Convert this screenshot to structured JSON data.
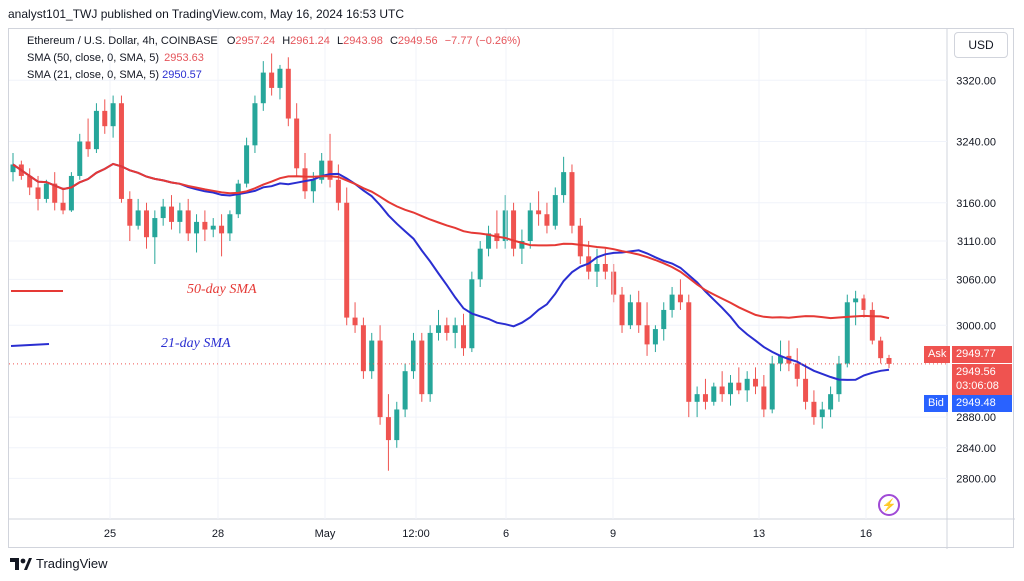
{
  "header": {
    "publisher": "analyst101_TWJ published on TradingView.com, May 16, 2024 16:53 UTC"
  },
  "legend": {
    "symbol": "Ethereum / U.S. Dollar, 4h, COINBASE",
    "o_label": "O",
    "o": "2957.24",
    "h_label": "H",
    "h": "2961.24",
    "l_label": "L",
    "l": "2943.98",
    "c_label": "C",
    "c": "2949.56",
    "change": "−7.77 (−0.26%)",
    "sma50_label": "SMA (50, close, 0, SMA, 5)",
    "sma50_value": "2953.63",
    "sma21_label": "SMA (21, close, 0, SMA, 5)",
    "sma21_value": "2950.57"
  },
  "currency_button": "USD",
  "annotations": {
    "sma50": "50-day SMA",
    "sma21": "21-day SMA"
  },
  "price_labels": {
    "ask_label": "Ask",
    "ask": "2949.77",
    "last": "2949.56",
    "countdown": "03:06:08",
    "bid_label": "Bid",
    "bid": "2949.48"
  },
  "footer": {
    "brand": "TradingView"
  },
  "colors": {
    "up": "#26a69a",
    "down": "#ef5350",
    "sma50": "#e53935",
    "sma21": "#2a2ed1",
    "grid": "#f0f3fa"
  },
  "chart_data": {
    "type": "candlestick",
    "y_axis": {
      "min": 2760,
      "max": 3400,
      "ticks": [
        2800,
        2840,
        2880,
        3000,
        3060,
        3110,
        3160,
        3240,
        3320
      ]
    },
    "x_labels": [
      "25",
      "28",
      "May",
      "12:00",
      "6",
      "9",
      "13",
      "16"
    ],
    "ohlc": [
      [
        3200,
        3225,
        3188,
        3210
      ],
      [
        3210,
        3215,
        3190,
        3195
      ],
      [
        3195,
        3205,
        3170,
        3180
      ],
      [
        3180,
        3195,
        3150,
        3165
      ],
      [
        3165,
        3190,
        3160,
        3185
      ],
      [
        3185,
        3200,
        3150,
        3160
      ],
      [
        3160,
        3180,
        3145,
        3150
      ],
      [
        3150,
        3200,
        3148,
        3195
      ],
      [
        3195,
        3250,
        3190,
        3240
      ],
      [
        3240,
        3270,
        3220,
        3230
      ],
      [
        3230,
        3290,
        3225,
        3280
      ],
      [
        3280,
        3295,
        3250,
        3260
      ],
      [
        3260,
        3300,
        3245,
        3290
      ],
      [
        3290,
        3300,
        3160,
        3165
      ],
      [
        3165,
        3175,
        3110,
        3130
      ],
      [
        3130,
        3165,
        3125,
        3150
      ],
      [
        3150,
        3160,
        3100,
        3115
      ],
      [
        3115,
        3150,
        3080,
        3140
      ],
      [
        3140,
        3165,
        3130,
        3155
      ],
      [
        3155,
        3170,
        3125,
        3135
      ],
      [
        3135,
        3160,
        3120,
        3150
      ],
      [
        3150,
        3165,
        3110,
        3120
      ],
      [
        3120,
        3145,
        3095,
        3135
      ],
      [
        3135,
        3150,
        3110,
        3125
      ],
      [
        3125,
        3140,
        3115,
        3130
      ],
      [
        3130,
        3145,
        3090,
        3120
      ],
      [
        3120,
        3150,
        3110,
        3145
      ],
      [
        3145,
        3190,
        3140,
        3185
      ],
      [
        3185,
        3245,
        3180,
        3235
      ],
      [
        3235,
        3300,
        3225,
        3290
      ],
      [
        3290,
        3345,
        3280,
        3330
      ],
      [
        3330,
        3355,
        3300,
        3310
      ],
      [
        3310,
        3340,
        3295,
        3335
      ],
      [
        3335,
        3350,
        3260,
        3270
      ],
      [
        3270,
        3290,
        3195,
        3205
      ],
      [
        3205,
        3225,
        3165,
        3175
      ],
      [
        3175,
        3200,
        3160,
        3190
      ],
      [
        3190,
        3225,
        3185,
        3215
      ],
      [
        3215,
        3250,
        3180,
        3190
      ],
      [
        3190,
        3210,
        3150,
        3160
      ],
      [
        3160,
        3180,
        3000,
        3010
      ],
      [
        3010,
        3030,
        2990,
        3000
      ],
      [
        3000,
        3010,
        2930,
        2940
      ],
      [
        2940,
        2990,
        2930,
        2980
      ],
      [
        2980,
        3000,
        2870,
        2880
      ],
      [
        2880,
        2910,
        2810,
        2850
      ],
      [
        2850,
        2900,
        2840,
        2890
      ],
      [
        2890,
        2950,
        2880,
        2940
      ],
      [
        2940,
        2990,
        2930,
        2980
      ],
      [
        2980,
        2990,
        2900,
        2910
      ],
      [
        2910,
        3000,
        2900,
        2990
      ],
      [
        2990,
        3020,
        2980,
        3000
      ],
      [
        3000,
        3010,
        2980,
        2990
      ],
      [
        2990,
        3010,
        2970,
        3000
      ],
      [
        3000,
        3015,
        2960,
        2970
      ],
      [
        2970,
        3070,
        2965,
        3060
      ],
      [
        3060,
        3110,
        3050,
        3100
      ],
      [
        3100,
        3130,
        3090,
        3120
      ],
      [
        3120,
        3150,
        3100,
        3110
      ],
      [
        3110,
        3170,
        3100,
        3150
      ],
      [
        3150,
        3160,
        3090,
        3100
      ],
      [
        3100,
        3125,
        3080,
        3110
      ],
      [
        3110,
        3160,
        3100,
        3150
      ],
      [
        3150,
        3175,
        3130,
        3145
      ],
      [
        3145,
        3160,
        3120,
        3130
      ],
      [
        3130,
        3180,
        3125,
        3170
      ],
      [
        3170,
        3220,
        3160,
        3200
      ],
      [
        3200,
        3210,
        3120,
        3130
      ],
      [
        3130,
        3140,
        3080,
        3090
      ],
      [
        3090,
        3110,
        3060,
        3070
      ],
      [
        3070,
        3100,
        3050,
        3080
      ],
      [
        3080,
        3100,
        3060,
        3070
      ],
      [
        3070,
        3080,
        3030,
        3040
      ],
      [
        3040,
        3050,
        2990,
        3000
      ],
      [
        3000,
        3040,
        2995,
        3030
      ],
      [
        3030,
        3045,
        2990,
        3000
      ],
      [
        3000,
        3030,
        2960,
        2975
      ],
      [
        2975,
        3000,
        2965,
        2995
      ],
      [
        2995,
        3030,
        2980,
        3020
      ],
      [
        3020,
        3050,
        3010,
        3040
      ],
      [
        3040,
        3060,
        3020,
        3030
      ],
      [
        3030,
        3040,
        2880,
        2900
      ],
      [
        2900,
        2920,
        2880,
        2910
      ],
      [
        2910,
        2930,
        2890,
        2900
      ],
      [
        2900,
        2925,
        2895,
        2920
      ],
      [
        2920,
        2940,
        2900,
        2910
      ],
      [
        2910,
        2935,
        2895,
        2925
      ],
      [
        2925,
        2945,
        2910,
        2915
      ],
      [
        2915,
        2940,
        2900,
        2930
      ],
      [
        2930,
        2945,
        2910,
        2920
      ],
      [
        2920,
        2935,
        2880,
        2890
      ],
      [
        2890,
        2960,
        2885,
        2950
      ],
      [
        2950,
        2980,
        2940,
        2960
      ],
      [
        2960,
        2980,
        2940,
        2950
      ],
      [
        2950,
        2970,
        2920,
        2930
      ],
      [
        2930,
        2950,
        2890,
        2900
      ],
      [
        2900,
        2915,
        2870,
        2880
      ],
      [
        2880,
        2900,
        2865,
        2890
      ],
      [
        2890,
        2920,
        2880,
        2910
      ],
      [
        2910,
        2960,
        2900,
        2950
      ],
      [
        2950,
        3040,
        2945,
        3030
      ],
      [
        3030,
        3045,
        3000,
        3035
      ],
      [
        3035,
        3040,
        3010,
        3020
      ],
      [
        3020,
        3030,
        2975,
        2980
      ],
      [
        2980,
        2985,
        2950,
        2957
      ],
      [
        2957.24,
        2961.24,
        2943.98,
        2949.56
      ]
    ],
    "sma21_last": 2950.57,
    "sma50_last": 2953.63
  }
}
